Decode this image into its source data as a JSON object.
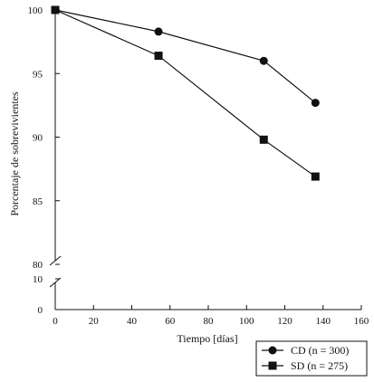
{
  "chart_data": {
    "type": "line",
    "xlabel": "Tiempo [días]",
    "ylabel": "Porcentaje de sobrevivientes",
    "x_ticks": [
      0,
      20,
      40,
      60,
      80,
      100,
      120,
      140,
      160
    ],
    "xlim": [
      0,
      160
    ],
    "y_ticks_upper": [
      80,
      85,
      90,
      95,
      100
    ],
    "ylim_upper": [
      80,
      100
    ],
    "y_ticks_lower": [
      0,
      10
    ],
    "ylim_lower": [
      0,
      10
    ],
    "axis_break": "y-axis broken between 10 and 80",
    "grid": false,
    "legend_position": "bottom-right",
    "series": [
      {
        "name": "CD (n = 300)",
        "marker": "circle",
        "x": [
          0,
          54,
          109,
          136
        ],
        "y": [
          100,
          98.3,
          96.0,
          92.7
        ]
      },
      {
        "name": "SD (n = 275)",
        "marker": "square",
        "x": [
          0,
          54,
          109,
          136
        ],
        "y": [
          100,
          96.4,
          89.8,
          86.9
        ]
      }
    ]
  }
}
